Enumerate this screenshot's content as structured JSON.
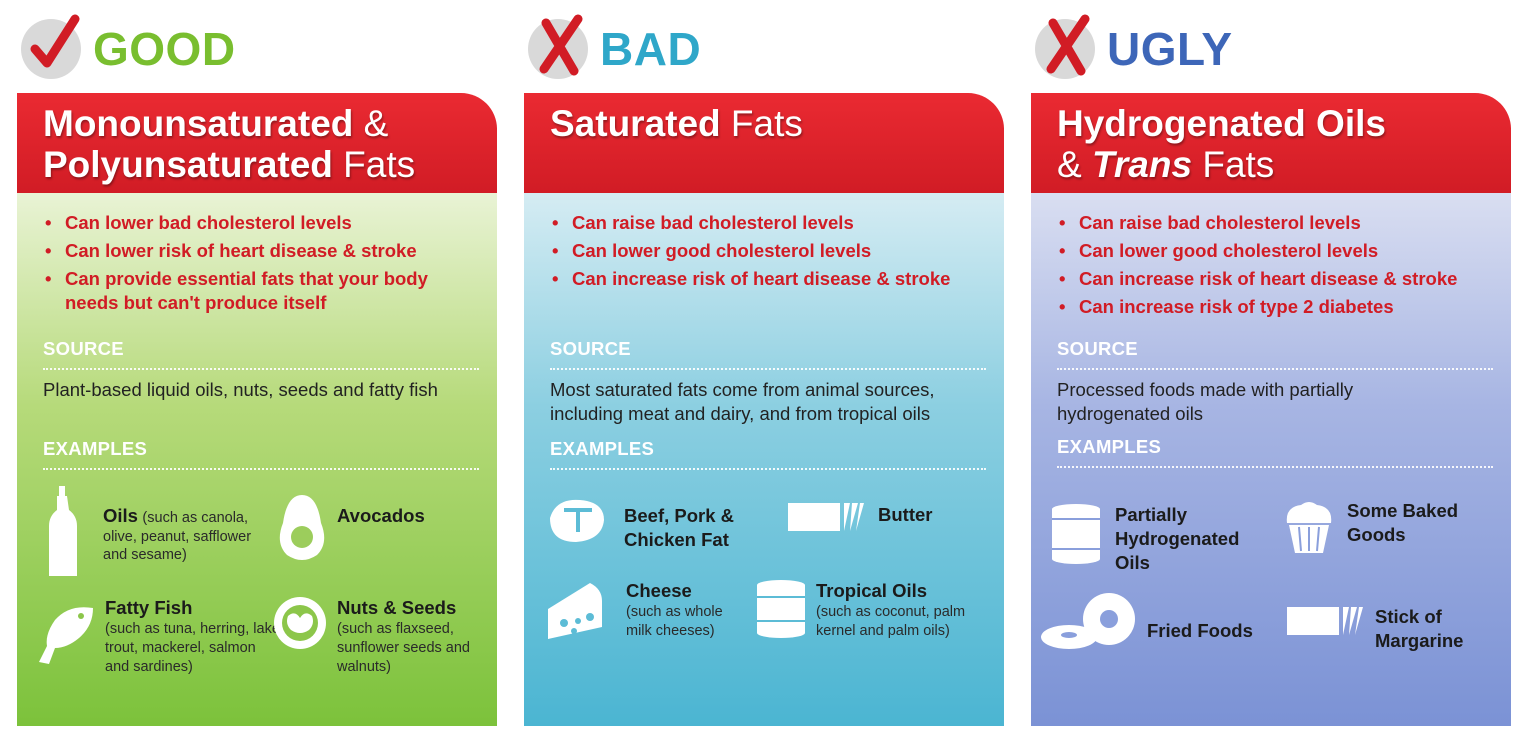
{
  "columns": [
    {
      "verdict": "GOOD",
      "verdict_icon": "check-mark-icon",
      "title_bold_1": "Monounsaturated",
      "title_plain_1": " &",
      "title_bold_2": "Polyunsaturated",
      "title_plain_2": " Fats",
      "points": [
        "Can lower bad cholesterol levels",
        "Can lower risk of heart disease & stroke",
        "Can provide essential fats that your body needs but can't produce itself"
      ],
      "source_label": "SOURCE",
      "source_text": "Plant-based liquid oils, nuts, seeds and fatty fish",
      "examples_label": "EXAMPLES",
      "examples": [
        {
          "name": "Oils",
          "detail": "(such as canola, olive, peanut, safflower and sesame)",
          "icon": "oil-bottle-icon"
        },
        {
          "name": "Avocados",
          "detail": "",
          "icon": "avocado-icon"
        },
        {
          "name": "Fatty Fish",
          "detail": "(such as tuna, herring, lake trout, mackerel, salmon and sardines)",
          "icon": "fish-icon"
        },
        {
          "name": "Nuts & Seeds",
          "detail": "(such as flaxseed, sunflower seeds and walnuts)",
          "icon": "walnut-icon"
        }
      ]
    },
    {
      "verdict": "BAD",
      "verdict_icon": "x-mark-icon",
      "title_bold_1": "Saturated",
      "title_plain_1": " Fats",
      "points": [
        "Can raise bad cholesterol levels",
        "Can lower good cholesterol levels",
        "Can increase risk of heart disease & stroke"
      ],
      "source_label": "SOURCE",
      "source_text": "Most saturated fats come from animal sources, including meat and dairy, and from tropical oils",
      "examples_label": "EXAMPLES",
      "examples": [
        {
          "name": "Beef, Pork & Chicken Fat",
          "detail": "",
          "icon": "steak-icon"
        },
        {
          "name": "Butter",
          "detail": "",
          "icon": "butter-stick-icon"
        },
        {
          "name": "Cheese",
          "detail": "(such as whole milk cheeses)",
          "icon": "cheese-icon"
        },
        {
          "name": "Tropical Oils",
          "detail": "(such as coconut, palm kernel and palm oils)",
          "icon": "oil-can-icon"
        }
      ]
    },
    {
      "verdict": "UGLY",
      "verdict_icon": "x-mark-icon",
      "title_bold_1": "Hydrogenated Oils",
      "title_plain_2": "& ",
      "title_italic_2": "Trans",
      "title_plain_3": " Fats",
      "points": [
        "Can raise bad cholesterol levels",
        "Can lower good cholesterol levels",
        "Can increase risk of heart disease & stroke",
        "Can increase risk of type 2 diabetes"
      ],
      "source_label": "SOURCE",
      "source_text": "Processed foods made with partially hydrogenated oils",
      "examples_label": "EXAMPLES",
      "examples": [
        {
          "name": "Partially Hydrogenated Oils",
          "detail": "",
          "icon": "shortening-can-icon"
        },
        {
          "name": "Some Baked Goods",
          "detail": "",
          "icon": "muffin-icon"
        },
        {
          "name": "Fried Foods",
          "detail": "",
          "icon": "donut-icon"
        },
        {
          "name": "Stick of Margarine",
          "detail": "",
          "icon": "margarine-stick-icon"
        }
      ]
    }
  ],
  "colors": {
    "red": "#d11c25",
    "good_green": "#79be2f",
    "bad_blue": "#2fa7c9",
    "ugly_blue": "#3d66b8"
  }
}
